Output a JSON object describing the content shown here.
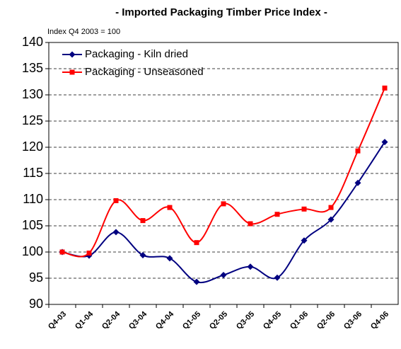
{
  "chart_data": {
    "type": "line",
    "title": "- Imported Packaging Timber Price Index -",
    "subtitle": "Index Q4 2003 = 100",
    "categories": [
      "Q4-03",
      "Q1-04",
      "Q2-04",
      "Q3-04",
      "Q4-04",
      "Q1-05",
      "Q2-05",
      "Q3-05",
      "Q4-05",
      "Q1-06",
      "Q2-06",
      "Q3-06",
      "Q4-06"
    ],
    "series": [
      {
        "name": "Packaging - Kiln dried",
        "color": "#000080",
        "marker": "diamond",
        "values": [
          100,
          99.3,
          103.8,
          99.4,
          98.8,
          94.3,
          95.6,
          97.2,
          95.1,
          102.2,
          106.2,
          113.2,
          121.0
        ]
      },
      {
        "name": "Packaging - Unseasoned",
        "color": "#ff0000",
        "marker": "square",
        "values": [
          100,
          99.8,
          109.8,
          106.0,
          108.5,
          101.8,
          109.2,
          105.4,
          107.2,
          108.2,
          108.5,
          119.3,
          131.3
        ]
      }
    ],
    "ylim": [
      90,
      140
    ],
    "yticks": [
      90,
      95,
      100,
      105,
      110,
      115,
      120,
      125,
      130,
      135,
      140
    ],
    "grid": true,
    "smooth": true,
    "legend": "upper left"
  }
}
